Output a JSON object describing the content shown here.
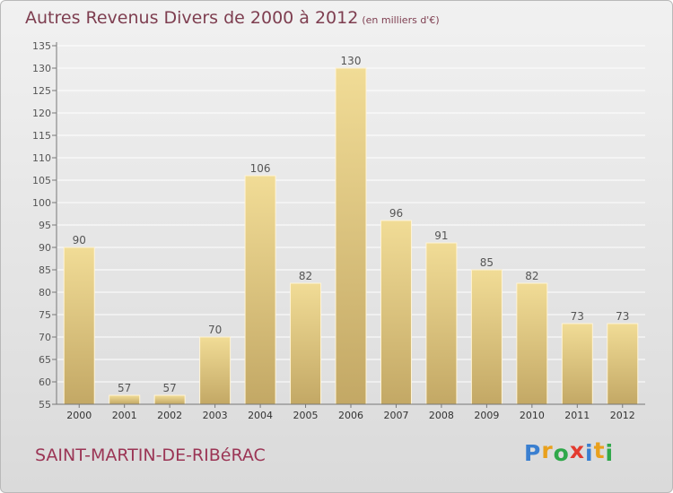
{
  "title": {
    "main": "Autres Revenus Divers de 2000 à 2012",
    "unit": "(en milliers d'€)"
  },
  "location": "SAINT-MARTIN-DE-RIBéRAC",
  "logo": {
    "text": "Proxiti",
    "letters": [
      "P",
      "r",
      "o",
      "x",
      "i",
      "t",
      "i"
    ],
    "colors": [
      "#3a7fd0",
      "#e9a01c",
      "#2fa84a",
      "#e33b2f",
      "#3a7fd0",
      "#e9a01c",
      "#2fa84a"
    ]
  },
  "colors": {
    "bar_top": "#f1dc96",
    "bar_bottom": "#c3a865",
    "grid": "#ffffff",
    "text": "#555555",
    "title": "#7e3e50"
  },
  "chart_data": {
    "type": "bar",
    "categories": [
      "2000",
      "2001",
      "2002",
      "2003",
      "2004",
      "2005",
      "2006",
      "2007",
      "2008",
      "2009",
      "2010",
      "2011",
      "2012"
    ],
    "values": [
      90,
      57,
      57,
      70,
      106,
      82,
      130,
      96,
      91,
      85,
      82,
      73,
      73
    ],
    "ylim": [
      55,
      135
    ],
    "yticks": [
      55,
      60,
      65,
      70,
      75,
      80,
      85,
      90,
      95,
      100,
      105,
      110,
      115,
      120,
      125,
      130,
      135
    ],
    "grid": true,
    "data_labels": true
  }
}
